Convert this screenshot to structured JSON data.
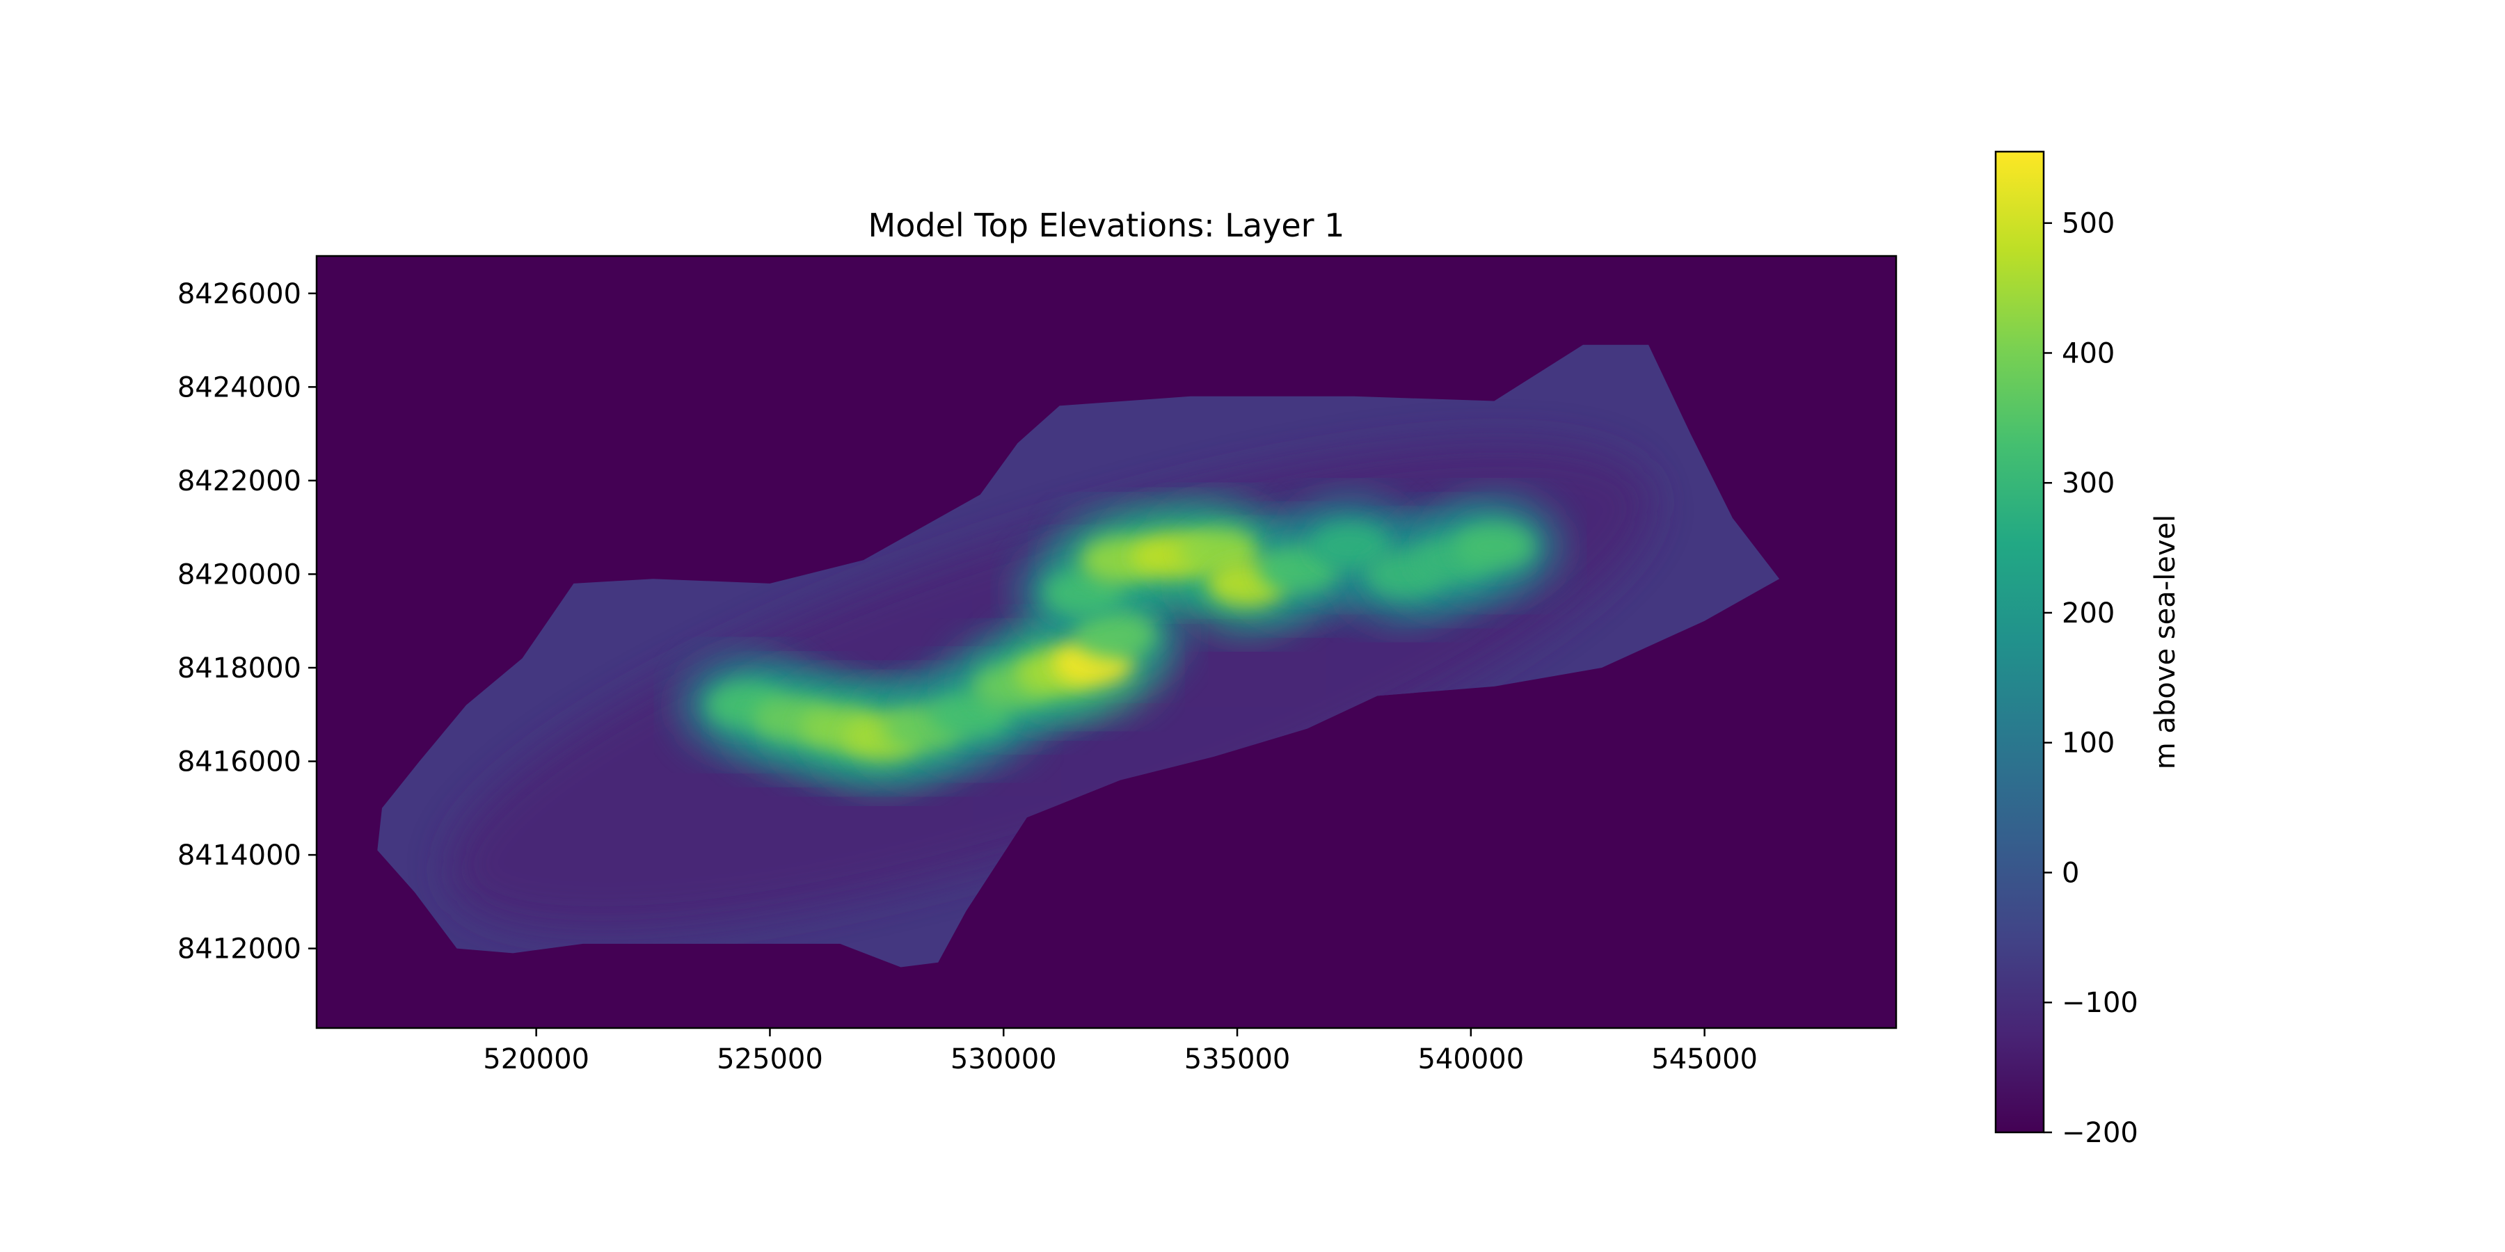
{
  "chart_data": {
    "type": "heatmap",
    "title": "Model Top Elevations: Layer 1",
    "xlabel": "",
    "ylabel": "",
    "xlim": [
      515300,
      549100
    ],
    "ylim": [
      8410300,
      8426800
    ],
    "x_ticks": [
      520000,
      525000,
      530000,
      535000,
      540000,
      545000
    ],
    "x_tick_labels": [
      "520000",
      "525000",
      "530000",
      "535000",
      "540000",
      "545000"
    ],
    "y_ticks": [
      8412000,
      8414000,
      8416000,
      8418000,
      8420000,
      8422000,
      8424000,
      8426000
    ],
    "y_tick_labels": [
      "8412000",
      "8414000",
      "8416000",
      "8418000",
      "8420000",
      "8422000",
      "8424000",
      "8426000"
    ],
    "grid": false,
    "colormap": "viridis",
    "background_value": -200,
    "island_outline": [
      [
        516700,
        8415000
      ],
      [
        517500,
        8416000
      ],
      [
        518500,
        8417200
      ],
      [
        519700,
        8418200
      ],
      [
        520800,
        8419800
      ],
      [
        522500,
        8419900
      ],
      [
        525000,
        8419800
      ],
      [
        527000,
        8420300
      ],
      [
        529500,
        8421700
      ],
      [
        530300,
        8422800
      ],
      [
        531200,
        8423600
      ],
      [
        534000,
        8423800
      ],
      [
        537500,
        8423800
      ],
      [
        540500,
        8423700
      ],
      [
        542400,
        8424900
      ],
      [
        543800,
        8424900
      ],
      [
        544700,
        8423000
      ],
      [
        545600,
        8421200
      ],
      [
        546600,
        8419900
      ],
      [
        545000,
        8419000
      ],
      [
        542800,
        8418000
      ],
      [
        540500,
        8417600
      ],
      [
        538000,
        8417400
      ],
      [
        536500,
        8416700
      ],
      [
        534500,
        8416100
      ],
      [
        532500,
        8415600
      ],
      [
        530500,
        8414800
      ],
      [
        529200,
        8412800
      ],
      [
        528600,
        8411700
      ],
      [
        527800,
        8411600
      ],
      [
        526500,
        8412100
      ],
      [
        524000,
        8412100
      ],
      [
        521000,
        8412100
      ],
      [
        519500,
        8411900
      ],
      [
        518300,
        8412000
      ],
      [
        517400,
        8413200
      ],
      [
        516600,
        8414100
      ]
    ],
    "basin": {
      "cx": 531000,
      "cy": 8417600,
      "rx": 13500,
      "ry": 3300,
      "rotation_deg": -18,
      "value": -120
    },
    "shelf_value": -80,
    "ridge_points": [
      {
        "x": 524500,
        "y": 8417200,
        "value": 330
      },
      {
        "x": 525500,
        "y": 8416900,
        "value": 380
      },
      {
        "x": 526500,
        "y": 8416700,
        "value": 420
      },
      {
        "x": 527400,
        "y": 8416500,
        "value": 450
      },
      {
        "x": 528300,
        "y": 8416700,
        "value": 380
      },
      {
        "x": 529300,
        "y": 8417000,
        "value": 330
      },
      {
        "x": 530200,
        "y": 8417600,
        "value": 380
      },
      {
        "x": 531100,
        "y": 8417900,
        "value": 450
      },
      {
        "x": 531900,
        "y": 8418100,
        "value": 540
      },
      {
        "x": 532400,
        "y": 8418700,
        "value": 360
      },
      {
        "x": 531700,
        "y": 8419600,
        "value": 320
      },
      {
        "x": 532500,
        "y": 8420300,
        "value": 430
      },
      {
        "x": 533600,
        "y": 8420400,
        "value": 480
      },
      {
        "x": 534600,
        "y": 8420500,
        "value": 430
      },
      {
        "x": 535200,
        "y": 8419800,
        "value": 470
      },
      {
        "x": 536300,
        "y": 8420100,
        "value": 330
      },
      {
        "x": 537400,
        "y": 8420600,
        "value": 280
      },
      {
        "x": 538600,
        "y": 8420000,
        "value": 300
      },
      {
        "x": 539600,
        "y": 8420300,
        "value": 300
      },
      {
        "x": 540500,
        "y": 8420600,
        "value": 330
      }
    ],
    "colorbar": {
      "label": "m above sea-level",
      "min": -200,
      "max": 555,
      "ticks": [
        -200,
        -100,
        0,
        100,
        200,
        300,
        400,
        500
      ],
      "tick_labels": [
        "−200",
        "−100",
        "0",
        "100",
        "200",
        "300",
        "400",
        "500"
      ]
    }
  }
}
